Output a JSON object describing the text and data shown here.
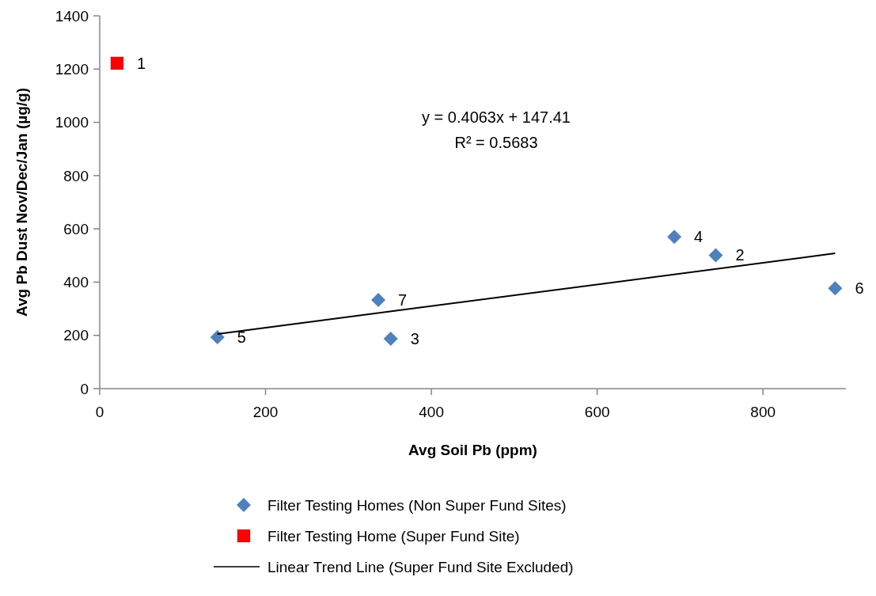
{
  "chart_data": {
    "type": "scatter",
    "xlabel": "Avg Soil Pb (ppm)",
    "ylabel": "Avg Pb Dust Nov/Dec/Jan (µg/g)",
    "xlim": [
      0,
      900
    ],
    "xticks": [
      0,
      200,
      400,
      600,
      800
    ],
    "ylim": [
      0,
      1400
    ],
    "yticks": [
      0,
      200,
      400,
      600,
      800,
      1000,
      1200,
      1400
    ],
    "grid": false,
    "legend": "bottom",
    "annotations": [
      "y = 0.4063x + 147.41",
      "R² = 0.5683",
      {
        "text": "1",
        "x": 21,
        "y": 1222
      },
      {
        "text": "2",
        "x": 743,
        "y": 501
      },
      {
        "text": "3",
        "x": 351,
        "y": 187
      },
      {
        "text": "4",
        "x": 693,
        "y": 570
      },
      {
        "text": "5",
        "x": 142,
        "y": 193
      },
      {
        "text": "6",
        "x": 887,
        "y": 377
      },
      {
        "text": "7",
        "x": 336,
        "y": 333
      }
    ],
    "series": [
      {
        "name": "Filter Testing Homes (Non Super Fund Sites)",
        "marker": "diamond",
        "color": "#4f81bd",
        "x": [
          743,
          351,
          693,
          142,
          887,
          336
        ],
        "values": [
          501,
          187,
          570,
          193,
          377,
          333
        ]
      },
      {
        "name": "Filter Testing Home (Super Fund Site)",
        "marker": "square",
        "color": "#ff0000",
        "x": [
          21
        ],
        "values": [
          1222
        ]
      },
      {
        "name": "Linear Trend Line (Super Fund Site Excluded)",
        "type": "line",
        "marker": "none",
        "color": "#000000",
        "x": [
          142,
          887
        ],
        "values": [
          205,
          508
        ]
      }
    ]
  }
}
